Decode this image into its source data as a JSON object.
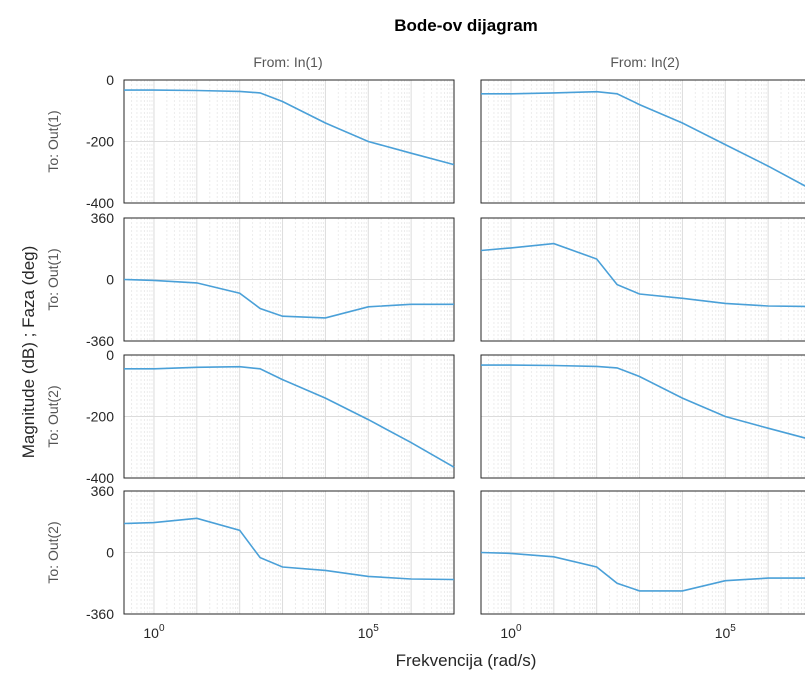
{
  "chart_data": {
    "type": "line",
    "title": "Bode-ov dijagram",
    "xlabel": "Frekvencija  (rad/s)",
    "ylabel": "Magnitude (dB) ; Faza (deg)",
    "xscale": "log",
    "xlim": [
      0.2,
      10000000
    ],
    "x_ticks": [
      1,
      100000
    ],
    "x_tick_labels": [
      {
        "base": "10",
        "exp": "0"
      },
      {
        "base": "10",
        "exp": "5"
      }
    ],
    "grid": true,
    "line_color": "#4aa0d8",
    "columns": [
      "From: In(1)",
      "From: In(2)"
    ],
    "rows": [
      {
        "label": "To: Out(1)",
        "kind": "magnitude",
        "ylim": [
          -400,
          0
        ],
        "yticks": [
          0,
          -200,
          -400
        ]
      },
      {
        "label": "To: Out(1)",
        "kind": "phase",
        "ylim": [
          -360,
          360
        ],
        "yticks": [
          360,
          0,
          -360
        ]
      },
      {
        "label": "To: Out(2)",
        "kind": "magnitude",
        "ylim": [
          -400,
          0
        ],
        "yticks": [
          0,
          -200,
          -400
        ]
      },
      {
        "label": "To: Out(2)",
        "kind": "phase",
        "ylim": [
          -360,
          360
        ],
        "yticks": [
          360,
          0,
          -360
        ]
      }
    ],
    "panels": [
      {
        "row": 0,
        "col": 0,
        "x": [
          0.2,
          1,
          10,
          100,
          300,
          1000,
          10000,
          100000,
          1000000,
          10000000
        ],
        "y": [
          -33,
          -33,
          -34,
          -37,
          -42,
          -70,
          -140,
          -200,
          -238,
          -275
        ]
      },
      {
        "row": 0,
        "col": 1,
        "x": [
          0.2,
          1,
          10,
          100,
          300,
          1000,
          10000,
          100000,
          1000000,
          10000000
        ],
        "y": [
          -45,
          -45,
          -42,
          -38,
          -45,
          -80,
          -140,
          -210,
          -280,
          -355
        ]
      },
      {
        "row": 1,
        "col": 0,
        "x": [
          0.2,
          1,
          10,
          100,
          300,
          1000,
          10000,
          100000,
          1000000,
          10000000
        ],
        "y": [
          0,
          -5,
          -20,
          -80,
          -170,
          -215,
          -225,
          -160,
          -145,
          -145
        ]
      },
      {
        "row": 1,
        "col": 1,
        "x": [
          0.2,
          1,
          10,
          100,
          300,
          1000,
          10000,
          100000,
          1000000,
          10000000
        ],
        "y": [
          170,
          185,
          210,
          120,
          -30,
          -85,
          -110,
          -140,
          -155,
          -158
        ]
      },
      {
        "row": 2,
        "col": 0,
        "x": [
          0.2,
          1,
          10,
          100,
          300,
          1000,
          10000,
          100000,
          1000000,
          10000000
        ],
        "y": [
          -45,
          -45,
          -40,
          -38,
          -45,
          -80,
          -140,
          -210,
          -285,
          -365
        ]
      },
      {
        "row": 2,
        "col": 1,
        "x": [
          0.2,
          1,
          10,
          100,
          300,
          1000,
          10000,
          100000,
          1000000,
          10000000
        ],
        "y": [
          -33,
          -33,
          -34,
          -37,
          -42,
          -70,
          -140,
          -200,
          -238,
          -275
        ]
      },
      {
        "row": 3,
        "col": 0,
        "x": [
          0.2,
          1,
          10,
          100,
          300,
          1000,
          10000,
          100000,
          1000000,
          10000000
        ],
        "y": [
          170,
          175,
          200,
          130,
          -30,
          -85,
          -105,
          -140,
          -155,
          -158
        ]
      },
      {
        "row": 3,
        "col": 1,
        "x": [
          0.2,
          1,
          10,
          100,
          300,
          1000,
          10000,
          100000,
          1000000,
          10000000
        ],
        "y": [
          0,
          -5,
          -25,
          -85,
          -180,
          -225,
          -225,
          -165,
          -150,
          -150
        ]
      }
    ]
  }
}
